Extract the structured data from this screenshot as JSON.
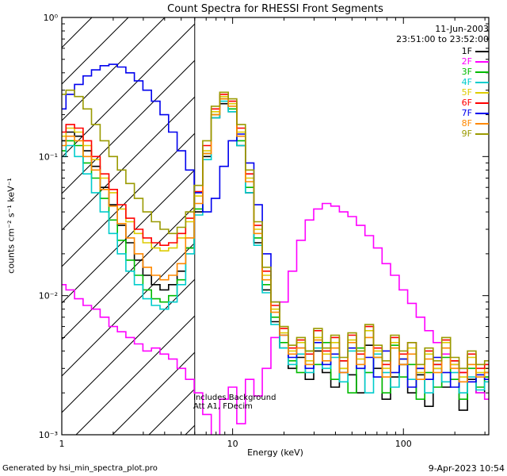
{
  "title": "Count Spectra for RHESSI Front Segments",
  "header": {
    "date": "11-Jun-2003",
    "time_range": "23:51:00 to 23:52:00"
  },
  "annotations": {
    "line1": "Includes Background",
    "line2": "Att A1, FDecim"
  },
  "footer": {
    "left": "Generated by hsi_min_spectra_plot.pro",
    "right": "9-Apr-2023 10:54"
  },
  "chart_data": {
    "type": "line",
    "mode": "step-histogram",
    "x_scale": "log",
    "y_scale": "log",
    "xlabel": "Energy (keV)",
    "ylabel": "counts cm⁻² s⁻¹ keV⁻¹",
    "xlim": [
      1,
      316
    ],
    "ylim": [
      0.001,
      1
    ],
    "x_ticks": [
      {
        "v": 1,
        "label": "1"
      },
      {
        "v": 10,
        "label": "10"
      },
      {
        "v": 100,
        "label": "100"
      }
    ],
    "y_ticks": [
      {
        "v": 0.001,
        "label": "10⁻³"
      },
      {
        "v": 0.01,
        "label": "10⁻²"
      },
      {
        "v": 0.1,
        "label": "10⁻¹"
      },
      {
        "v": 1,
        "label": "10⁰"
      }
    ],
    "hatched_region": {
      "x_min": 1,
      "x_max": 6.0
    },
    "energies_keV": [
      1.0,
      1.12,
      1.26,
      1.41,
      1.58,
      1.78,
      2.0,
      2.24,
      2.51,
      2.82,
      3.16,
      3.55,
      3.98,
      4.47,
      5.01,
      5.62,
      6.31,
      7.08,
      7.94,
      8.91,
      10.0,
      11.2,
      12.6,
      14.1,
      15.8,
      17.8,
      20.0,
      22.4,
      25.1,
      28.2,
      31.6,
      35.5,
      39.8,
      44.7,
      50.1,
      56.2,
      63.1,
      70.8,
      79.4,
      89.1,
      100,
      112,
      126,
      141,
      158,
      178,
      200,
      224,
      251,
      282,
      316
    ],
    "series": [
      {
        "name": "1F",
        "color": "#000000",
        "values": [
          0.13,
          0.15,
          0.14,
          0.11,
          0.085,
          0.06,
          0.045,
          0.032,
          0.024,
          0.018,
          0.014,
          0.012,
          0.011,
          0.012,
          0.015,
          0.022,
          0.04,
          0.1,
          0.19,
          0.24,
          0.21,
          0.12,
          0.055,
          0.024,
          0.011,
          0.0065,
          0.0042,
          0.003,
          0.0036,
          0.0025,
          0.004,
          0.0028,
          0.0022,
          0.0034,
          0.0027,
          0.002,
          0.0044,
          0.003,
          0.0018,
          0.0026,
          0.0032,
          0.002,
          0.0027,
          0.0016,
          0.003,
          0.0022,
          0.0034,
          0.0015,
          0.0025,
          0.002,
          0.0028
        ]
      },
      {
        "name": "2F",
        "color": "#ff00ff",
        "values": [
          0.012,
          0.011,
          0.0095,
          0.0085,
          0.008,
          0.007,
          0.006,
          0.0055,
          0.005,
          0.0045,
          0.004,
          0.0042,
          0.0038,
          0.0035,
          0.003,
          0.0025,
          0.002,
          0.0014,
          0.0009,
          0.0018,
          0.0022,
          0.0012,
          0.0025,
          0.0019,
          0.003,
          0.005,
          0.009,
          0.015,
          0.025,
          0.035,
          0.042,
          0.046,
          0.044,
          0.04,
          0.037,
          0.032,
          0.027,
          0.022,
          0.017,
          0.014,
          0.011,
          0.0088,
          0.007,
          0.0056,
          0.0046,
          0.0038,
          0.0032,
          0.0028,
          0.0024,
          0.002,
          0.0018
        ]
      },
      {
        "name": "3F",
        "color": "#00bb00",
        "values": [
          0.11,
          0.13,
          0.12,
          0.09,
          0.07,
          0.05,
          0.035,
          0.025,
          0.018,
          0.014,
          0.011,
          0.0095,
          0.009,
          0.01,
          0.013,
          0.022,
          0.042,
          0.105,
          0.2,
          0.26,
          0.22,
          0.13,
          0.06,
          0.026,
          0.012,
          0.007,
          0.0046,
          0.0034,
          0.0028,
          0.004,
          0.0032,
          0.0046,
          0.0025,
          0.003,
          0.002,
          0.0042,
          0.0028,
          0.0036,
          0.002,
          0.0044,
          0.0026,
          0.0032,
          0.0018,
          0.0028,
          0.0022,
          0.0036,
          0.0025,
          0.0018,
          0.003,
          0.0022,
          0.0026
        ]
      },
      {
        "name": "4F",
        "color": "#00cccc",
        "values": [
          0.1,
          0.12,
          0.1,
          0.075,
          0.055,
          0.04,
          0.028,
          0.02,
          0.015,
          0.012,
          0.0095,
          0.0085,
          0.008,
          0.009,
          0.012,
          0.02,
          0.038,
          0.095,
          0.19,
          0.25,
          0.21,
          0.12,
          0.055,
          0.023,
          0.0105,
          0.0062,
          0.0042,
          0.0032,
          0.0038,
          0.0028,
          0.0042,
          0.003,
          0.0036,
          0.0024,
          0.004,
          0.003,
          0.002,
          0.0038,
          0.0028,
          0.0022,
          0.0035,
          0.0025,
          0.003,
          0.002,
          0.0032,
          0.0024,
          0.0028,
          0.002,
          0.0026,
          0.0021,
          0.0024
        ]
      },
      {
        "name": "5F",
        "color": "#ddcc00",
        "values": [
          0.14,
          0.16,
          0.15,
          0.12,
          0.095,
          0.07,
          0.055,
          0.042,
          0.034,
          0.028,
          0.024,
          0.022,
          0.021,
          0.022,
          0.026,
          0.034,
          0.052,
          0.11,
          0.21,
          0.27,
          0.24,
          0.15,
          0.07,
          0.03,
          0.014,
          0.008,
          0.0054,
          0.004,
          0.0046,
          0.0034,
          0.005,
          0.0038,
          0.0046,
          0.003,
          0.0048,
          0.0035,
          0.0056,
          0.004,
          0.003,
          0.0046,
          0.0035,
          0.0042,
          0.0028,
          0.0038,
          0.003,
          0.0046,
          0.0032,
          0.0026,
          0.0036,
          0.0028,
          0.003
        ]
      },
      {
        "name": "6F",
        "color": "#ff0000",
        "values": [
          0.15,
          0.17,
          0.16,
          0.13,
          0.1,
          0.075,
          0.058,
          0.045,
          0.036,
          0.03,
          0.026,
          0.024,
          0.023,
          0.024,
          0.028,
          0.036,
          0.056,
          0.12,
          0.22,
          0.28,
          0.25,
          0.16,
          0.075,
          0.032,
          0.015,
          0.0085,
          0.0058,
          0.0042,
          0.0048,
          0.0038,
          0.0056,
          0.004,
          0.005,
          0.0034,
          0.0052,
          0.0038,
          0.006,
          0.0042,
          0.0032,
          0.005,
          0.0038,
          0.0046,
          0.003,
          0.004,
          0.0032,
          0.0048,
          0.0034,
          0.0028,
          0.0038,
          0.003,
          0.0032
        ]
      },
      {
        "name": "7F",
        "color": "#0000ee",
        "values": [
          0.22,
          0.28,
          0.33,
          0.38,
          0.42,
          0.45,
          0.46,
          0.44,
          0.4,
          0.35,
          0.3,
          0.25,
          0.2,
          0.15,
          0.11,
          0.08,
          0.055,
          0.04,
          0.05,
          0.085,
          0.13,
          0.145,
          0.09,
          0.045,
          0.02,
          0.009,
          0.0052,
          0.0036,
          0.0042,
          0.003,
          0.0046,
          0.0032,
          0.0038,
          0.0028,
          0.0042,
          0.003,
          0.0036,
          0.0026,
          0.004,
          0.0028,
          0.0035,
          0.0022,
          0.003,
          0.0025,
          0.0036,
          0.0028,
          0.0022,
          0.003,
          0.0024,
          0.0027,
          0.0025
        ]
      },
      {
        "name": "8F",
        "color": "#ff8800",
        "values": [
          0.12,
          0.14,
          0.13,
          0.1,
          0.08,
          0.058,
          0.044,
          0.033,
          0.026,
          0.02,
          0.016,
          0.014,
          0.013,
          0.014,
          0.017,
          0.026,
          0.046,
          0.105,
          0.2,
          0.26,
          0.23,
          0.14,
          0.066,
          0.028,
          0.013,
          0.0076,
          0.0052,
          0.0038,
          0.0042,
          0.0032,
          0.0048,
          0.0034,
          0.0042,
          0.0028,
          0.0046,
          0.0032,
          0.005,
          0.0036,
          0.0026,
          0.0042,
          0.0032,
          0.0038,
          0.0025,
          0.0035,
          0.0028,
          0.0042,
          0.003,
          0.0024,
          0.0032,
          0.0026,
          0.0028
        ]
      },
      {
        "name": "9F",
        "color": "#9a9a00",
        "values": [
          0.28,
          0.3,
          0.27,
          0.22,
          0.17,
          0.13,
          0.1,
          0.08,
          0.064,
          0.05,
          0.04,
          0.034,
          0.03,
          0.028,
          0.031,
          0.04,
          0.062,
          0.13,
          0.23,
          0.29,
          0.26,
          0.17,
          0.08,
          0.034,
          0.016,
          0.009,
          0.006,
          0.0044,
          0.005,
          0.004,
          0.0058,
          0.0042,
          0.0052,
          0.0036,
          0.0054,
          0.004,
          0.0062,
          0.0044,
          0.0034,
          0.0052,
          0.004,
          0.0046,
          0.0032,
          0.0042,
          0.0034,
          0.005,
          0.0036,
          0.003,
          0.004,
          0.0032,
          0.0034
        ]
      }
    ]
  }
}
